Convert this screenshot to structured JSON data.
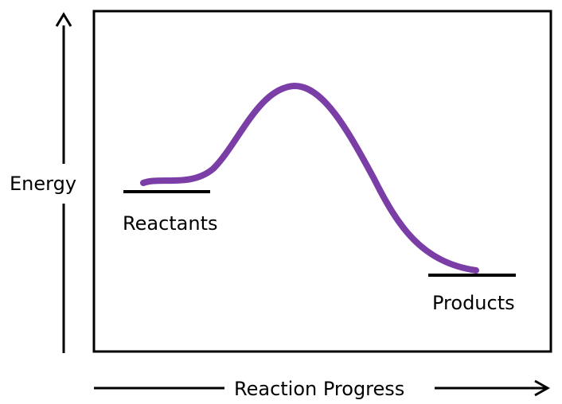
{
  "diagram": {
    "y_axis_label": "Energy",
    "x_axis_label": "Reaction Progress",
    "reactants_label": "Reactants",
    "products_label": "Products"
  },
  "colors": {
    "curve": "#7a3ea6",
    "lines": "#000000",
    "background": "#ffffff"
  }
}
